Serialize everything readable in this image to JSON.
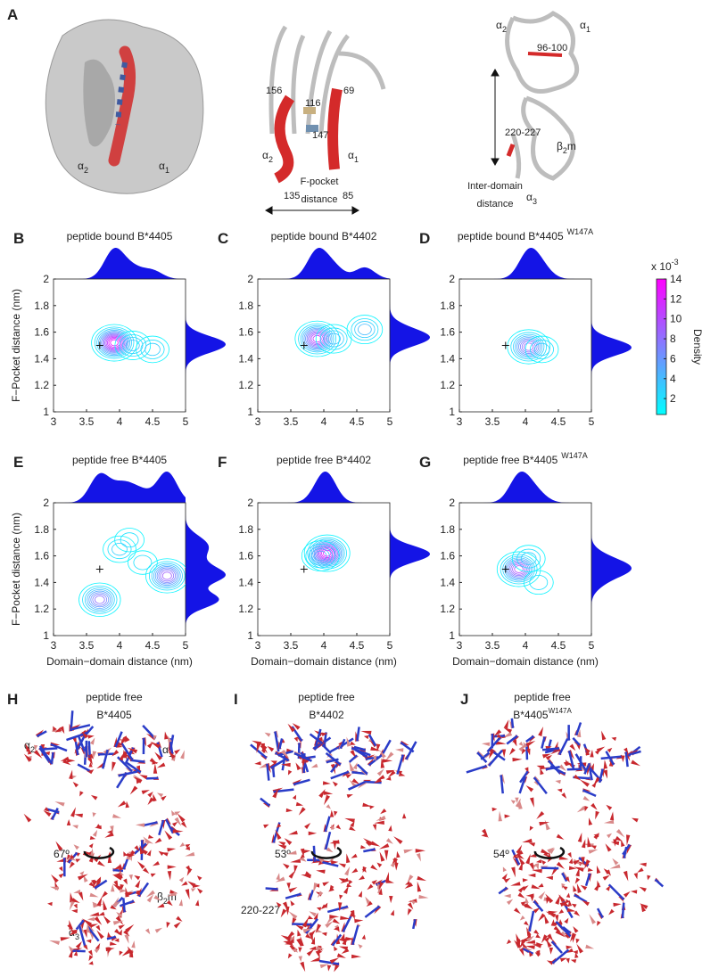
{
  "chart_data": [
    {
      "type": "contour",
      "label": "B",
      "title": "peptide bound B*4405",
      "ylabel": "F−Pocket distance (nm)",
      "x": [
        3.92,
        4.2,
        4.5
      ],
      "y": [
        1.52,
        1.5,
        1.47
      ],
      "values": [
        14,
        5,
        4
      ],
      "reference": {
        "x": 3.7,
        "y": 1.5
      },
      "xlim": [
        3,
        5
      ],
      "ylim": [
        1,
        2
      ],
      "xticks": [
        3,
        3.5,
        4,
        4.5,
        5
      ],
      "yticks": [
        1,
        1.2,
        1.4,
        1.6,
        1.8,
        2
      ]
    },
    {
      "type": "contour",
      "label": "C",
      "title": "peptide bound B*4402",
      "x": [
        3.9,
        4.15,
        4.62
      ],
      "y": [
        1.55,
        1.55,
        1.62
      ],
      "values": [
        12,
        5,
        5
      ],
      "reference": {
        "x": 3.7,
        "y": 1.5
      },
      "xlim": [
        3,
        5
      ],
      "ylim": [
        1,
        2
      ],
      "xticks": [
        3,
        3.5,
        4,
        4.5,
        5
      ],
      "yticks": [
        1,
        1.2,
        1.4,
        1.6,
        1.8,
        2
      ]
    },
    {
      "type": "contour",
      "label": "D",
      "title": "peptide bound B*4405",
      "title_sup": "W147A",
      "x": [
        4.05,
        4.25
      ],
      "y": [
        1.49,
        1.47
      ],
      "values": [
        10,
        4
      ],
      "reference": {
        "x": 3.7,
        "y": 1.5
      },
      "xlim": [
        3,
        5
      ],
      "ylim": [
        1,
        2
      ],
      "xticks": [
        3,
        3.5,
        4,
        4.5,
        5
      ],
      "yticks": [
        1,
        1.2,
        1.4,
        1.6,
        1.8,
        2
      ]
    },
    {
      "type": "contour",
      "label": "E",
      "title": "peptide free B*4405",
      "ylabel": "F−Pocket distance (nm)",
      "xlabel": "Domain−domain distance (nm)",
      "x": [
        3.7,
        4.72,
        4.0,
        4.35,
        4.15
      ],
      "y": [
        1.27,
        1.45,
        1.65,
        1.55,
        1.72
      ],
      "values": [
        9,
        10,
        4,
        3,
        3
      ],
      "reference": {
        "x": 3.7,
        "y": 1.5
      },
      "xlim": [
        3,
        5
      ],
      "ylim": [
        1,
        2
      ],
      "xticks": [
        3,
        3.5,
        4,
        4.5,
        5
      ],
      "yticks": [
        1,
        1.2,
        1.4,
        1.6,
        1.8,
        2
      ]
    },
    {
      "type": "contour",
      "label": "F",
      "title": "peptide free B*4402",
      "xlabel": "Domain−domain distance (nm)",
      "x": [
        4.05,
        3.95
      ],
      "y": [
        1.62,
        1.6
      ],
      "values": [
        14,
        6
      ],
      "reference": {
        "x": 3.7,
        "y": 1.5
      },
      "xlim": [
        3,
        5
      ],
      "ylim": [
        1,
        2
      ],
      "xticks": [
        3,
        3.5,
        4,
        4.5,
        5
      ],
      "yticks": [
        1,
        1.2,
        1.4,
        1.6,
        1.8,
        2
      ]
    },
    {
      "type": "contour",
      "label": "G",
      "title": "peptide free B*4405",
      "title_sup": "W147A",
      "xlabel": "Domain−domain distance (nm)",
      "x": [
        3.9,
        4.2,
        4.05
      ],
      "y": [
        1.5,
        1.4,
        1.58
      ],
      "values": [
        11,
        3,
        4
      ],
      "reference": {
        "x": 3.7,
        "y": 1.5
      },
      "xlim": [
        3,
        5
      ],
      "ylim": [
        1,
        2
      ],
      "xticks": [
        3,
        3.5,
        4,
        4.5,
        5
      ],
      "yticks": [
        1,
        1.2,
        1.4,
        1.6,
        1.8,
        2
      ]
    },
    {
      "type": "colorbar",
      "title": "Density",
      "scale_label": "x 10",
      "scale_exp": "-3",
      "zlim": [
        0.4,
        14
      ],
      "zticks": [
        2,
        4,
        6,
        8,
        10,
        12,
        14
      ]
    }
  ],
  "structure_panels": [
    {
      "label": "A",
      "left": {
        "a2": {
          "text": "α",
          "sub": "2"
        },
        "a1": {
          "text": "α",
          "sub": "1"
        }
      },
      "middle": {
        "residues": [
          "156",
          "116",
          "69",
          "147",
          "135",
          "85"
        ],
        "a2": {
          "text": "α",
          "sub": "2"
        },
        "a1": {
          "text": "α",
          "sub": "1"
        },
        "caption": [
          "F-pocket",
          "distance"
        ]
      },
      "right": {
        "a2": {
          "text": "α",
          "sub": "2"
        },
        "a1": {
          "text": "α",
          "sub": "1"
        },
        "r1": "96-100",
        "r2": "220-227",
        "b2m": {
          "text": "β",
          "sub": "2",
          "tail": "m"
        },
        "a3": {
          "text": "α",
          "sub": "3"
        },
        "caption": [
          "Inter-domain",
          "distance"
        ]
      }
    },
    {
      "label": "H",
      "title": "peptide free",
      "subtitle": "B*4405",
      "angle": "67º",
      "a2": {
        "text": "α",
        "sub": "2"
      },
      "a1": {
        "text": "α",
        "sub": "1"
      },
      "b2m": {
        "text": "β",
        "sub": "2",
        "tail": "m"
      },
      "a3": {
        "text": "α",
        "sub": "3"
      }
    },
    {
      "label": "I",
      "title": "peptide free",
      "subtitle": "B*4402",
      "angle": "53º",
      "residues": "220-227"
    },
    {
      "label": "J",
      "title": "peptide free",
      "subtitle": "B*4405",
      "subtitle_sup": "W147A",
      "angle": "54º"
    }
  ]
}
